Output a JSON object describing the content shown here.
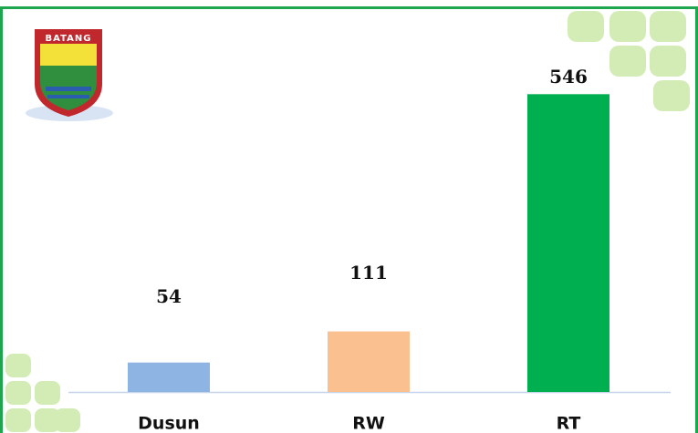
{
  "logo_text": "BATANG",
  "chart_data": {
    "type": "bar",
    "categories": [
      "Dusun",
      "RW",
      "RT"
    ],
    "values": [
      54,
      111,
      546
    ],
    "colors": [
      "#8eb4e3",
      "#fac090",
      "#00b050"
    ],
    "ylim": [
      0,
      600
    ]
  }
}
